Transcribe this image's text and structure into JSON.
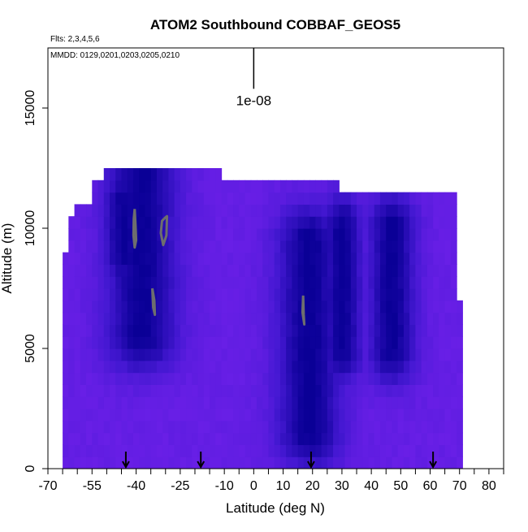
{
  "chart_data": {
    "type": "heatmap",
    "title": "ATOM2 Southbound COBBAF_GEOS5",
    "flights_label": "Flts: 2,3,4,5,6",
    "dates_label": "MMDD: 0129,0201,0203,0205,0210",
    "xlabel": "Latitude (deg N)",
    "ylabel": "Altitude (m)",
    "xlim": [
      -70,
      85
    ],
    "ylim": [
      0,
      17500
    ],
    "x_ticks": [
      -70,
      -55,
      -40,
      -25,
      -10,
      0,
      10,
      20,
      30,
      40,
      50,
      60,
      70,
      80
    ],
    "x_tick_labels": [
      "-70",
      "-55",
      "-40",
      "-25",
      "-10",
      "0",
      "10",
      "20",
      "30",
      "40",
      "50",
      "60",
      "70",
      "80"
    ],
    "x_minor_ticks": [
      -65,
      -60,
      -50,
      -45,
      -35,
      -30,
      -20,
      -15,
      -5,
      5,
      15,
      25,
      35,
      45,
      55,
      65,
      75,
      85
    ],
    "y_ticks": [
      0,
      5000,
      10000,
      15000
    ],
    "y_tick_labels": [
      "0",
      "5000",
      "10000",
      "15000"
    ],
    "scale_bar": {
      "label": "1e-08",
      "x": 0,
      "y_top": 17500,
      "y_bottom": 15800
    },
    "arrows_at_latitude": [
      -43.5,
      -18,
      19.5,
      61
    ],
    "colors": {
      "high": "#0a0096",
      "mid": "#4418d2",
      "low": "#7a22f0",
      "contour": "#6e6e6e"
    },
    "profile_top_altitude": [
      {
        "lat_from": -65,
        "lat_to": -63,
        "alt_top": 9000
      },
      {
        "lat_from": -63,
        "lat_to": -60,
        "alt_top": 10500
      },
      {
        "lat_from": -60,
        "lat_to": -55,
        "alt_top": 11000
      },
      {
        "lat_from": -55,
        "lat_to": -50,
        "alt_top": 12000
      },
      {
        "lat_from": -50,
        "lat_to": -10,
        "alt_top": 12500
      },
      {
        "lat_from": -10,
        "lat_to": 29,
        "alt_top": 12000
      },
      {
        "lat_from": 29,
        "lat_to": 69,
        "alt_top": 11500
      },
      {
        "lat_from": 69,
        "lat_to": 70.5,
        "alt_top": 7000
      },
      {
        "lat_from": 70.5,
        "lat_to": 71.5,
        "alt_top": 3000
      }
    ],
    "high_concentration_regions": [
      {
        "lat": -38,
        "alt_from": 5500,
        "alt_to": 12500,
        "width_deg": 24
      },
      {
        "lat": -44,
        "alt_from": 9000,
        "alt_to": 11000,
        "width_deg": 14
      },
      {
        "lat": 19,
        "alt_from": 1500,
        "alt_to": 9500,
        "width_deg": 22
      },
      {
        "lat": 30,
        "alt_from": 5000,
        "alt_to": 10000,
        "width_deg": 14
      },
      {
        "lat": 47,
        "alt_from": 5000,
        "alt_to": 10000,
        "width_deg": 16
      }
    ],
    "contours": [
      [
        [
          -40.5,
          10800
        ],
        [
          -40.2,
          10100
        ],
        [
          -40,
          9500
        ],
        [
          -40.5,
          9200
        ],
        [
          -40.9,
          9700
        ],
        [
          -40.8,
          10400
        ],
        [
          -40.5,
          10800
        ]
      ],
      [
        [
          -30.5,
          10400
        ],
        [
          -29.5,
          10500
        ],
        [
          -29.7,
          9700
        ],
        [
          -30.8,
          9300
        ],
        [
          -31.6,
          9800
        ],
        [
          -31.2,
          10300
        ],
        [
          -30.5,
          10400
        ]
      ],
      [
        [
          -34.5,
          7500
        ],
        [
          -34.2,
          6700
        ],
        [
          -33.6,
          6400
        ],
        [
          -33.8,
          7000
        ],
        [
          -34.5,
          7500
        ]
      ],
      [
        [
          16.8,
          7200
        ],
        [
          17,
          6400
        ],
        [
          17.2,
          6000
        ],
        [
          16.6,
          6500
        ],
        [
          16.8,
          7200
        ]
      ]
    ]
  }
}
